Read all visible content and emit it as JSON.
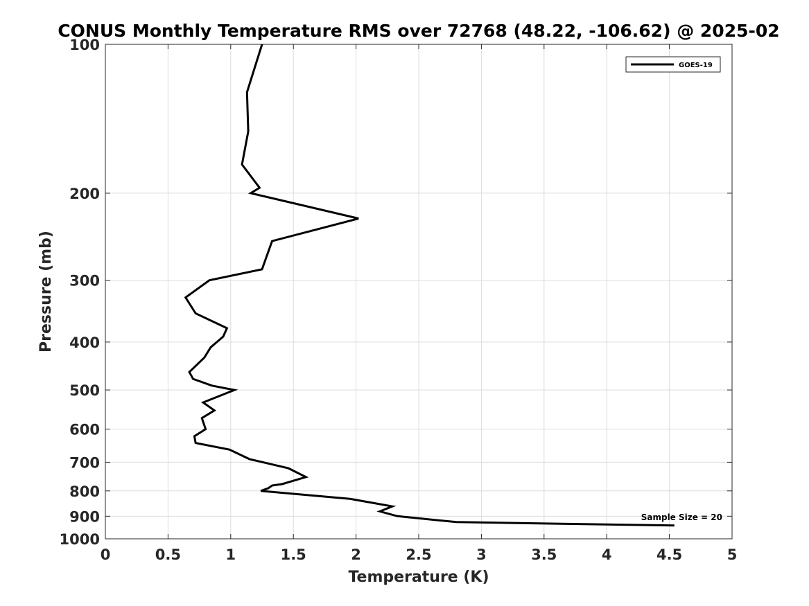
{
  "chart_data": {
    "type": "line",
    "title": "CONUS Monthly Temperature RMS over 72768 (48.22, -106.62) @ 2025-02",
    "xlabel": "Temperature (K)",
    "ylabel": "Pressure (mb)",
    "xlim": [
      0,
      5
    ],
    "ylim": [
      100,
      1000
    ],
    "yscale": "log",
    "yreversed": true,
    "grid": true,
    "legend_location": "top-right",
    "xticks": [
      0,
      0.5,
      1,
      1.5,
      2,
      2.5,
      3,
      3.5,
      4,
      4.5,
      5
    ],
    "xtick_labels": [
      "0",
      "0.5",
      "1",
      "1.5",
      "2",
      "2.5",
      "3",
      "3.5",
      "4",
      "4.5",
      "5"
    ],
    "yticks": [
      100,
      200,
      300,
      400,
      500,
      600,
      700,
      800,
      900,
      1000
    ],
    "ytick_labels": [
      "100",
      "200",
      "300",
      "400",
      "500",
      "600",
      "700",
      "800",
      "900",
      "1000"
    ],
    "series": [
      {
        "name": "GOES-19",
        "color": "#000000",
        "temperature": [
          1.25,
          1.13,
          1.14,
          1.09,
          1.23,
          1.16,
          2.02,
          1.33,
          1.25,
          0.83,
          0.64,
          0.72,
          0.97,
          0.94,
          0.84,
          0.79,
          0.67,
          0.7,
          0.85,
          1.03,
          0.78,
          0.87,
          0.77,
          0.8,
          0.71,
          0.72,
          0.99,
          1.15,
          1.46,
          1.6,
          1.41,
          1.33,
          1.3,
          1.24,
          1.95,
          2.29,
          2.19,
          2.33,
          2.8,
          4.54
        ],
        "pressure": [
          100,
          125,
          150,
          175,
          195,
          200,
          225,
          250,
          285,
          300,
          325,
          350,
          375,
          390,
          410,
          430,
          460,
          475,
          490,
          500,
          530,
          550,
          570,
          600,
          620,
          640,
          660,
          690,
          720,
          750,
          775,
          780,
          790,
          800,
          830,
          860,
          880,
          900,
          925,
          940
        ]
      }
    ],
    "annotation": "Sample Size = 20"
  }
}
